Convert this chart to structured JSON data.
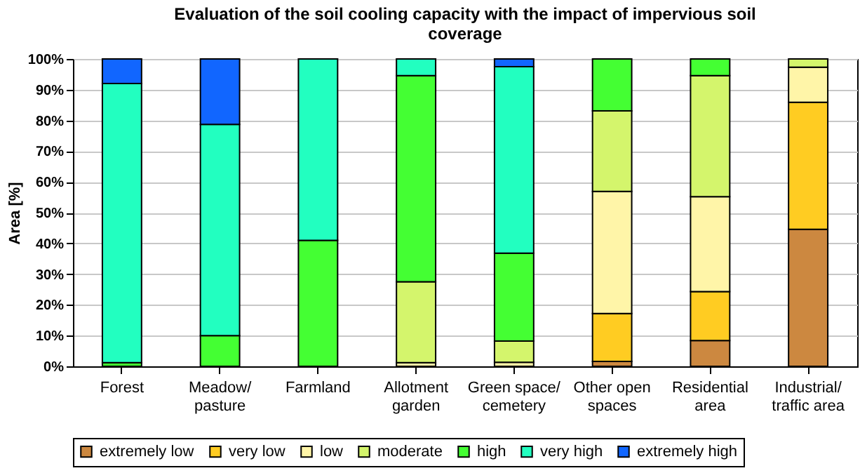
{
  "chart_data": {
    "type": "bar",
    "stacked": true,
    "title": [
      "Evaluation of the soil cooling capacity with the impact of impervious soil",
      "coverage"
    ],
    "ylabel": "Area [%]",
    "categories": [
      "Forest",
      "Meadow/ pasture",
      "Farmland",
      "Allotment garden",
      "Green space/ cemetery",
      "Other open spaces",
      "Residential area",
      "Industrial/ traffic area"
    ],
    "series": [
      {
        "name": "extremely low",
        "color": "#cc8840",
        "values": [
          0,
          0,
          0,
          0,
          0,
          1.6,
          8.4,
          44.6
        ]
      },
      {
        "name": "very low",
        "color": "#ffcc22",
        "values": [
          0,
          0,
          0,
          0,
          0,
          15.6,
          15.9,
          41.3
        ]
      },
      {
        "name": "low",
        "color": "#fff5a8",
        "values": [
          0,
          0,
          0,
          1.2,
          1.3,
          39.7,
          30.9,
          11.4
        ]
      },
      {
        "name": "moderate",
        "color": "#d4f56c",
        "values": [
          0,
          0,
          0,
          26.3,
          6.9,
          26.2,
          39.4,
          2.7
        ]
      },
      {
        "name": "high",
        "color": "#44ff33",
        "values": [
          1.2,
          10,
          41,
          67.1,
          28.6,
          16.9,
          5.4,
          0
        ]
      },
      {
        "name": "very high",
        "color": "#22ffc0",
        "values": [
          90.8,
          68.7,
          59,
          5.4,
          60.7,
          0,
          0,
          0
        ]
      },
      {
        "name": "extremely high",
        "color": "#1166ff",
        "values": [
          8,
          21.3,
          0,
          0,
          2.5,
          0,
          0,
          0
        ]
      }
    ],
    "ylim": [
      0,
      100
    ],
    "yticks": [
      {
        "value": 0,
        "label": "0%"
      },
      {
        "value": 10,
        "label": "10%"
      },
      {
        "value": 20,
        "label": "20%"
      },
      {
        "value": 30,
        "label": "30%"
      },
      {
        "value": 40,
        "label": "40%"
      },
      {
        "value": 50,
        "label": "50%"
      },
      {
        "value": 60,
        "label": "60%"
      },
      {
        "value": 70,
        "label": "70%"
      },
      {
        "value": 80,
        "label": "80%"
      },
      {
        "value": 90,
        "label": "90%"
      },
      {
        "value": 100,
        "label": "100%"
      }
    ],
    "grid": "y",
    "legend": "bottom"
  }
}
